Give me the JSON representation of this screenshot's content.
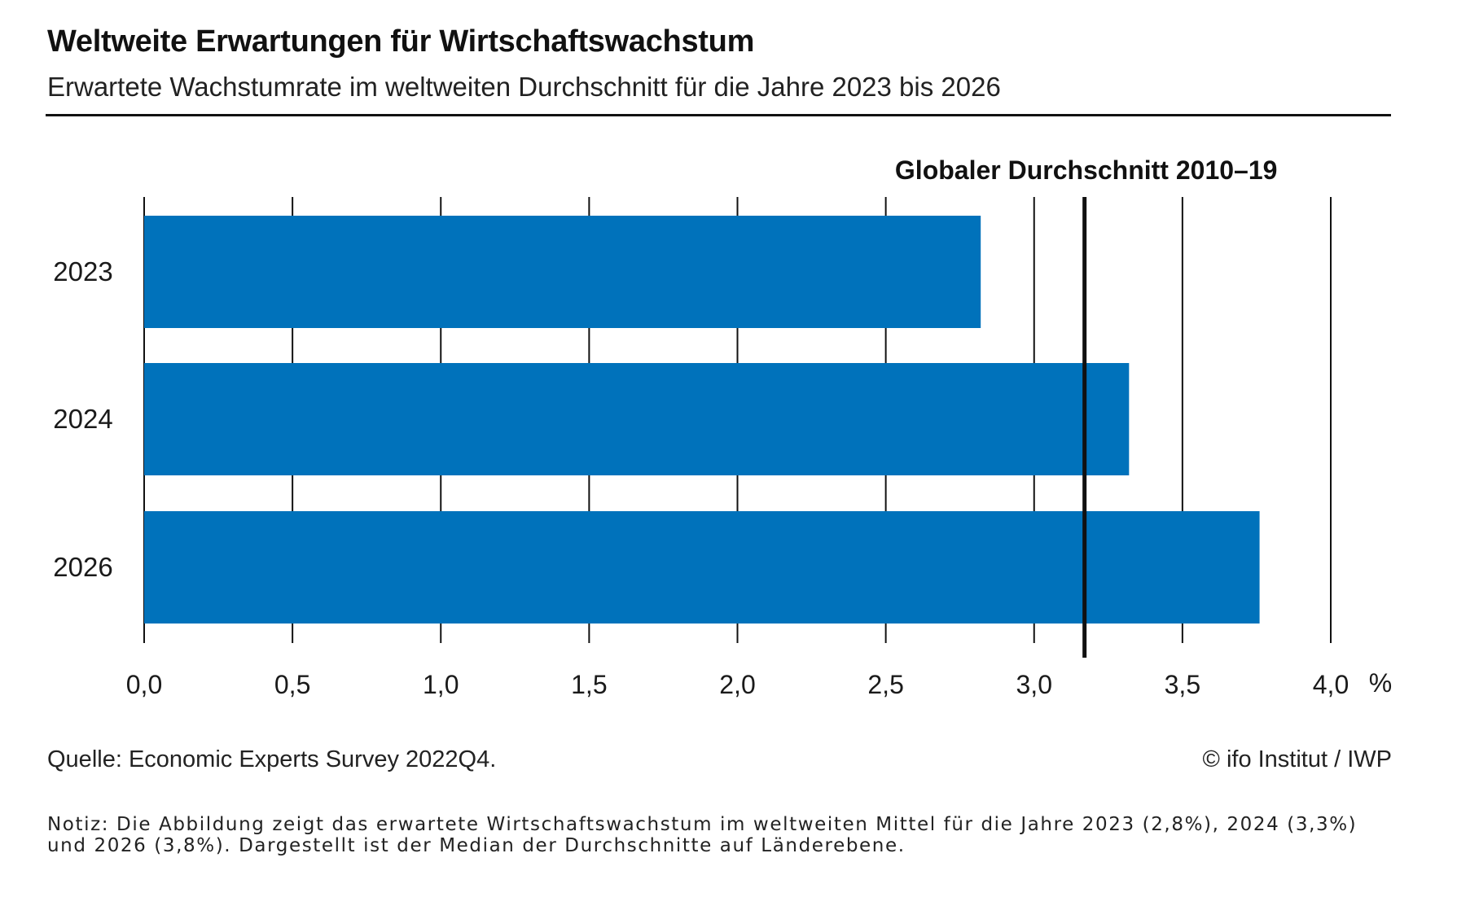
{
  "header": {
    "title": "Weltweite Erwartungen für Wirtschaftswachstum",
    "subtitle": "Erwartete Wachstumrate im weltweiten Durchschnitt für die Jahre 2023 bis 2026"
  },
  "chart_data": {
    "type": "bar",
    "orientation": "horizontal",
    "categories": [
      "2023",
      "2024",
      "2026"
    ],
    "values": [
      2.82,
      3.32,
      3.76
    ],
    "bar_color": "#0072bb",
    "xlim": [
      0,
      4
    ],
    "x_ticks": [
      0,
      0.5,
      1,
      1.5,
      2,
      2.5,
      3,
      3.5,
      4
    ],
    "x_tick_labels": [
      "0,0",
      "0,5",
      "1,0",
      "1,5",
      "2,0",
      "2,5",
      "3,0",
      "3,5",
      "4,0"
    ],
    "x_unit": "%",
    "grid": "vertical",
    "reference_line": {
      "label": "Globaler Durchschnitt 2010–19",
      "value": 3.17
    }
  },
  "footer": {
    "source": "Quelle: Economic Experts Survey 2022Q4.",
    "copyright": "© ifo Institut / IWP",
    "note": "Notiz: Die Abbildung zeigt das erwartete Wirtschaftswachstum im weltweiten Mittel für die Jahre 2023 (2,8%), 2024 (3,3%) und 2026 (3,8%). Dargestellt ist der Median der Durchschnitte auf Länderebene."
  }
}
